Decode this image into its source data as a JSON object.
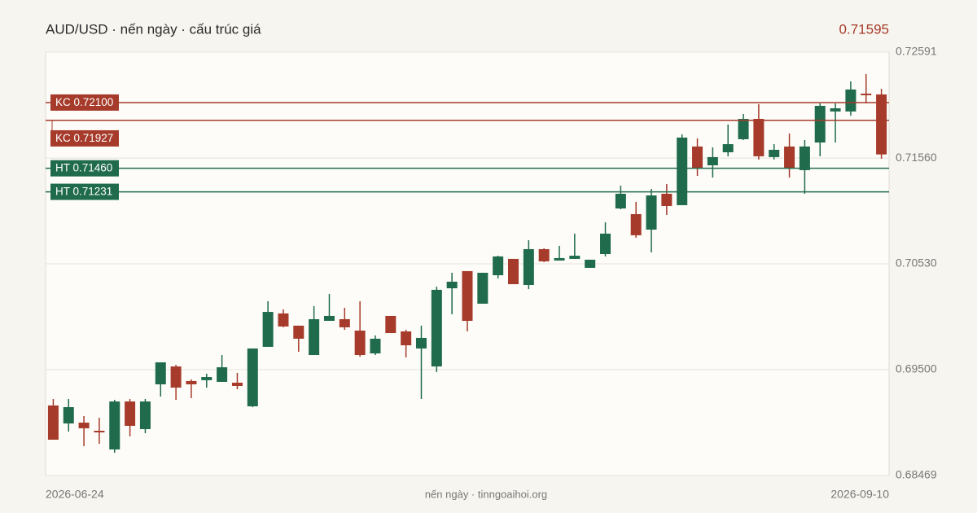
{
  "chart_data": {
    "type": "candlestick",
    "title": "AUD/USD · nến ngày · cấu trúc giá",
    "price": "0.71595",
    "price_color": "#a63b2b",
    "footer": "nến ngày · tinngoaihoi.org",
    "categories": [
      "2026-06-24",
      null,
      null,
      null,
      null,
      null,
      null,
      null,
      null,
      null,
      null,
      null,
      null,
      null,
      null,
      null,
      null,
      null,
      null,
      null,
      null,
      null,
      null,
      null,
      null,
      null,
      null,
      null,
      null,
      null,
      null,
      null,
      null,
      null,
      null,
      null,
      null,
      null,
      null,
      null,
      null,
      null,
      null,
      null,
      null,
      null,
      null,
      null,
      null,
      null,
      null,
      null,
      null,
      null,
      "2026-09-10"
    ],
    "open": [
      0.69151,
      0.68976,
      0.68984,
      0.68905,
      0.68723,
      0.6919,
      0.68921,
      0.69357,
      0.69531,
      0.69389,
      0.69397,
      0.69381,
      0.69373,
      0.69143,
      0.69722,
      0.70047,
      0.69928,
      0.69642,
      0.69975,
      0.69991,
      0.6988,
      0.69658,
      0.70023,
      0.69872,
      0.69706,
      0.69531,
      0.70292,
      0.70459,
      0.70142,
      0.70419,
      0.70578,
      0.70324,
      0.70673,
      0.70562,
      0.70578,
      0.70491,
      0.70625,
      0.71069,
      0.71014,
      0.70863,
      0.71212,
      0.71101,
      0.71672,
      0.71489,
      0.71616,
      0.71743,
      0.71941,
      0.71569,
      0.71672,
      0.71442,
      0.71711,
      0.72013,
      0.72013,
      0.72187,
      0.72179
    ],
    "high": [
      0.69214,
      0.69214,
      0.69048,
      0.69032,
      0.69206,
      0.69214,
      0.69214,
      0.69571,
      0.69547,
      0.69405,
      0.6946,
      0.69642,
      0.69468,
      0.69706,
      0.70166,
      0.70086,
      0.69928,
      0.70118,
      0.70237,
      0.70102,
      0.70166,
      0.69833,
      0.70023,
      0.69888,
      0.69928,
      0.70308,
      0.70443,
      0.70459,
      0.70443,
      0.70609,
      0.70578,
      0.7076,
      0.70681,
      0.70705,
      0.70824,
      0.7057,
      0.70934,
      0.71291,
      0.71133,
      0.71259,
      0.71307,
      0.71791,
      0.71751,
      0.71664,
      0.71886,
      0.71989,
      0.72084,
      0.71695,
      0.71799,
      0.71735,
      0.72092,
      0.72092,
      0.72306,
      0.72377,
      0.72234
    ],
    "low": [
      0.68818,
      0.68897,
      0.68755,
      0.68778,
      0.68691,
      0.6885,
      0.68881,
      0.69238,
      0.69206,
      0.69222,
      0.69325,
      0.69381,
      0.69309,
      0.69135,
      0.69722,
      0.69912,
      0.69674,
      0.69642,
      0.69975,
      0.69888,
      0.69626,
      0.69642,
      0.69856,
      0.69619,
      0.69214,
      0.69476,
      0.70039,
      0.69872,
      0.70142,
      0.70388,
      0.70332,
      0.70284,
      0.70546,
      0.70562,
      0.70578,
      0.70491,
      0.70602,
      0.71061,
      0.70784,
      0.70641,
      0.71006,
      0.71101,
      0.71386,
      0.7137,
      0.71577,
      0.71735,
      0.71545,
      0.71545,
      0.7137,
      0.71212,
      0.71577,
      0.71711,
      0.71973,
      0.72092,
      0.71553
    ],
    "close": [
      0.68818,
      0.69135,
      0.68929,
      0.68889,
      0.6919,
      0.68953,
      0.6919,
      0.69571,
      0.69325,
      0.69357,
      0.69428,
      0.69523,
      0.69341,
      0.69706,
      0.70062,
      0.6992,
      0.69801,
      0.69991,
      0.70023,
      0.69912,
      0.69642,
      0.69801,
      0.69856,
      0.69737,
      0.69809,
      0.70277,
      0.70356,
      0.69975,
      0.70443,
      0.70602,
      0.70332,
      0.70673,
      0.70554,
      0.70586,
      0.70609,
      0.7057,
      0.70824,
      0.71212,
      0.70808,
      0.71196,
      0.71093,
      0.71759,
      0.71458,
      0.71569,
      0.71695,
      0.71941,
      0.71577,
      0.7164,
      0.71458,
      0.71672,
      0.72068,
      0.72044,
      0.72227,
      0.72171,
      0.71595
    ],
    "up_color": "#1f6b4c",
    "down_color": "#a63b2b",
    "ylim": [
      0.68469,
      0.72591
    ],
    "yticks": [
      0.72591,
      {
        "value": 0.7156,
        "label": "0.71560"
      },
      {
        "value": 0.7053,
        "label": "0.70530"
      },
      {
        "value": 0.695,
        "label": "0.69500"
      },
      0.68469
    ],
    "grid": true,
    "levels": [
      {
        "label": "KC 0.72100",
        "value": 0.721,
        "color": "#a63b2b"
      },
      {
        "label": "KC 0.71927",
        "value": 0.71927,
        "color": "#a63b2b"
      },
      {
        "label": "HT 0.71460",
        "value": 0.7146,
        "color": "#1f6b4c"
      },
      {
        "label": "HT 0.71231",
        "value": 0.71231,
        "color": "#1f6b4c"
      }
    ]
  }
}
